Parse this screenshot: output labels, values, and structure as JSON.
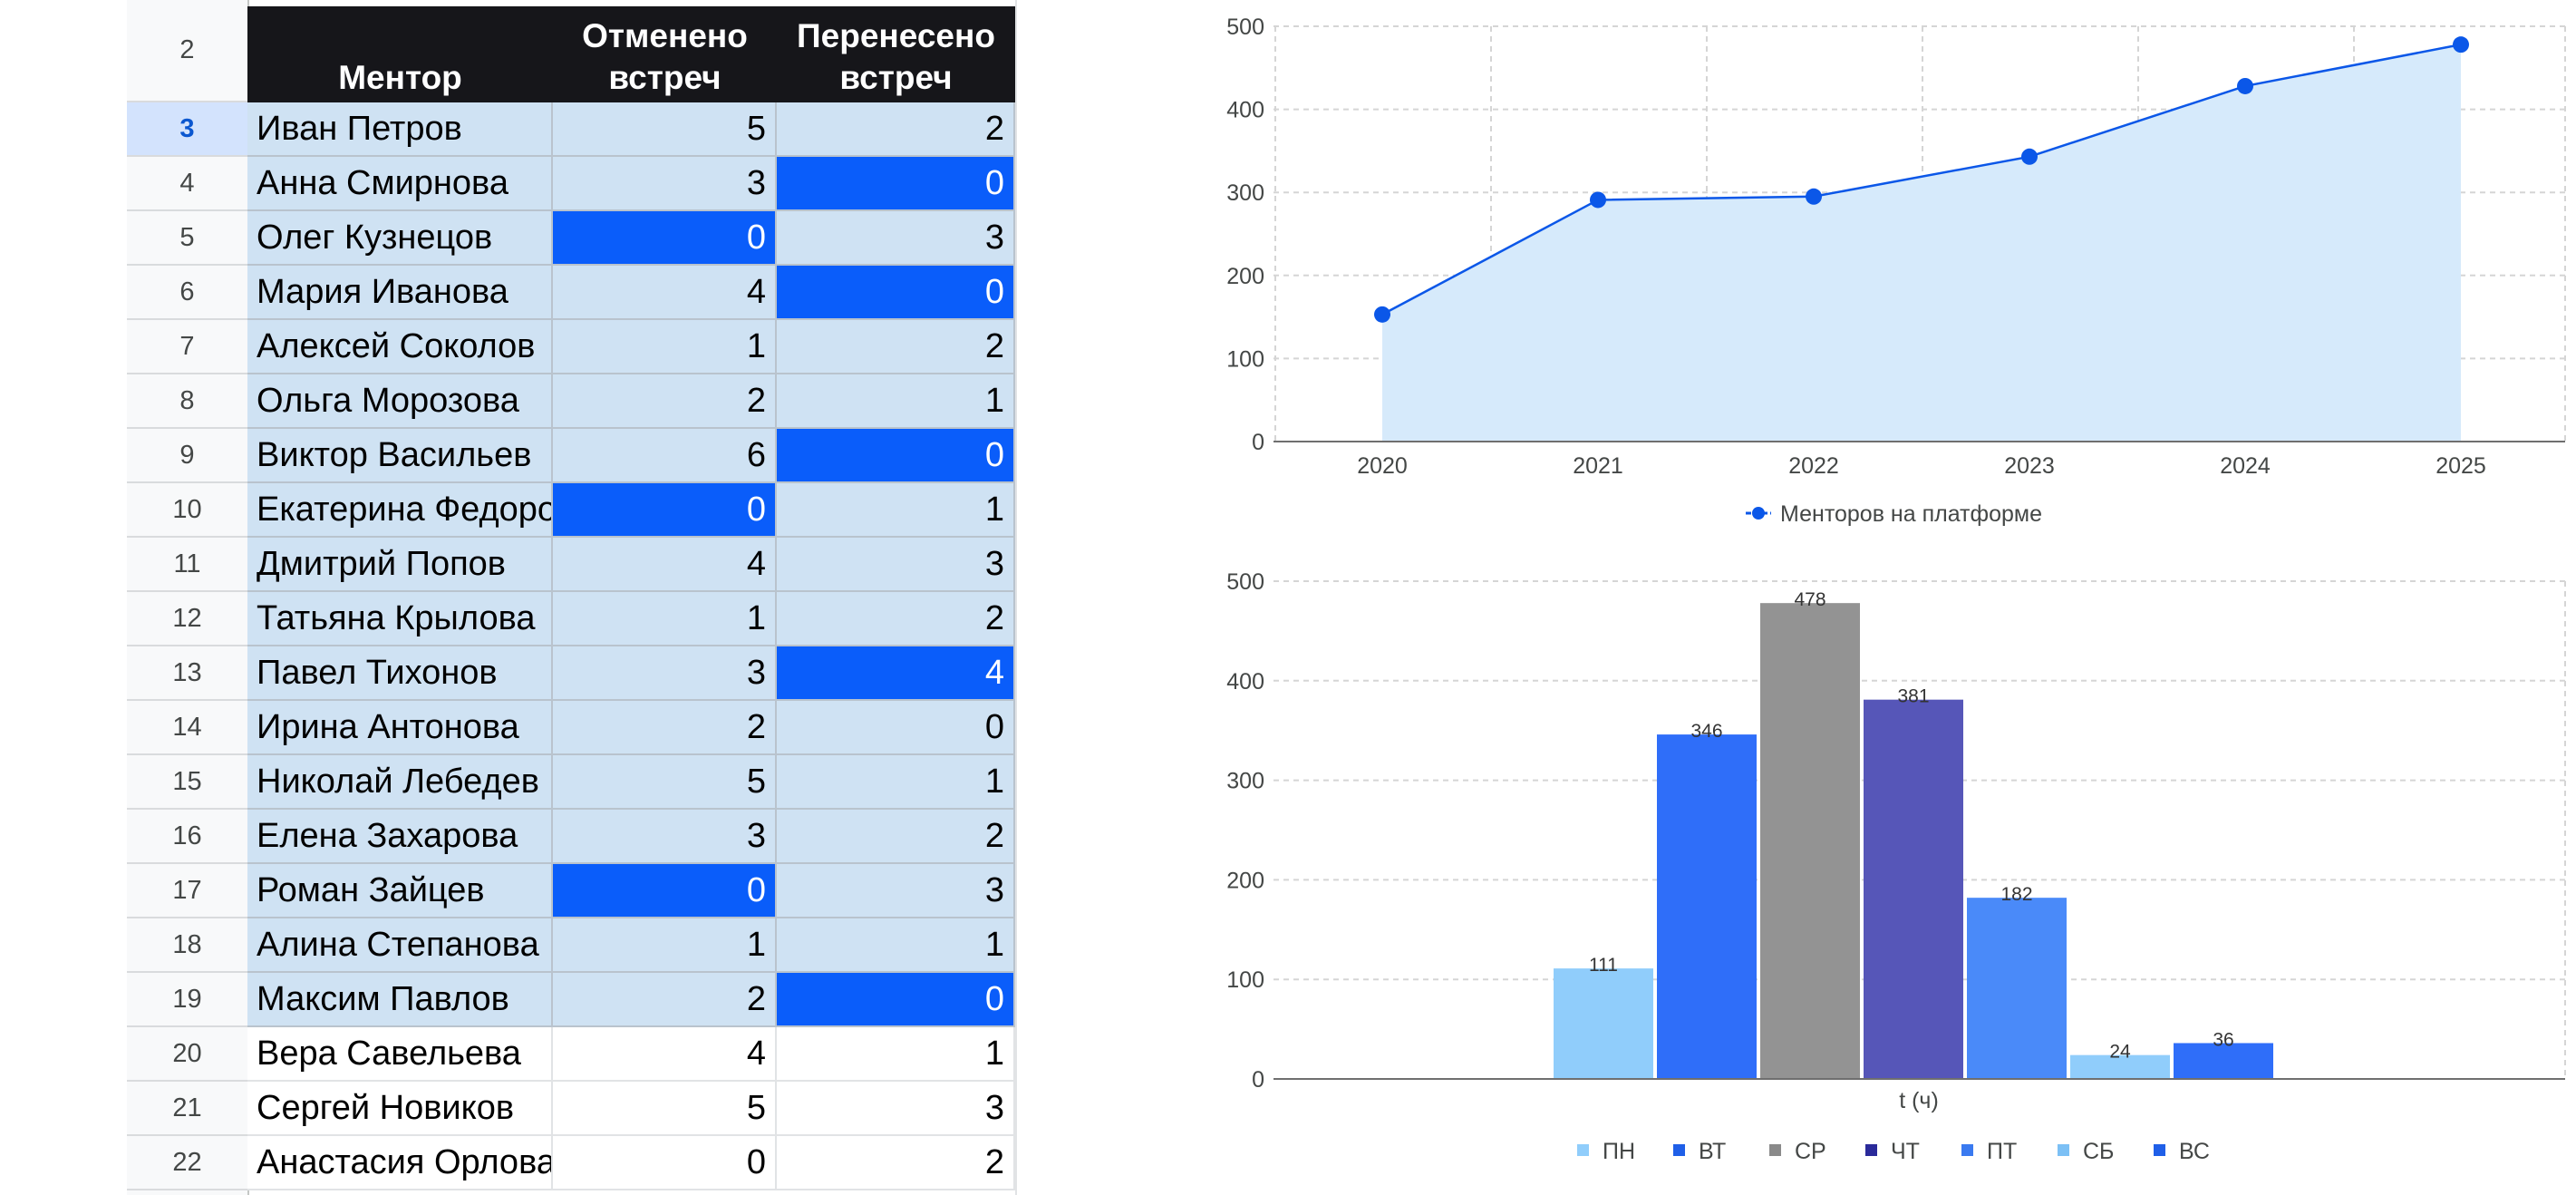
{
  "sheet": {
    "header_row_number": "2",
    "headers": {
      "mentor": "Ментор",
      "cancelled": "Отменено\nвстреч",
      "moved": "Перенесено\nвстреч"
    },
    "rows": [
      {
        "num": "3",
        "name": "Иван Петров",
        "cancelled": "5",
        "moved": "2",
        "cancelled_hi": false,
        "moved_hi": false,
        "band": true,
        "active": true
      },
      {
        "num": "4",
        "name": "Анна Смирнова",
        "cancelled": "3",
        "moved": "0",
        "cancelled_hi": false,
        "moved_hi": true,
        "band": true,
        "active": false
      },
      {
        "num": "5",
        "name": "Олег Кузнецов",
        "cancelled": "0",
        "moved": "3",
        "cancelled_hi": true,
        "moved_hi": false,
        "band": true,
        "active": false
      },
      {
        "num": "6",
        "name": "Мария Иванова",
        "cancelled": "4",
        "moved": "0",
        "cancelled_hi": false,
        "moved_hi": true,
        "band": true,
        "active": false
      },
      {
        "num": "7",
        "name": "Алексей Соколов",
        "cancelled": "1",
        "moved": "2",
        "cancelled_hi": false,
        "moved_hi": false,
        "band": true,
        "active": false
      },
      {
        "num": "8",
        "name": "Ольга Морозова",
        "cancelled": "2",
        "moved": "1",
        "cancelled_hi": false,
        "moved_hi": false,
        "band": true,
        "active": false
      },
      {
        "num": "9",
        "name": "Виктор Васильев",
        "cancelled": "6",
        "moved": "0",
        "cancelled_hi": false,
        "moved_hi": true,
        "band": true,
        "active": false
      },
      {
        "num": "10",
        "name": "Екатерина Федоро",
        "cancelled": "0",
        "moved": "1",
        "cancelled_hi": true,
        "moved_hi": false,
        "band": true,
        "active": false
      },
      {
        "num": "11",
        "name": "Дмитрий Попов",
        "cancelled": "4",
        "moved": "3",
        "cancelled_hi": false,
        "moved_hi": false,
        "band": true,
        "active": false
      },
      {
        "num": "12",
        "name": "Татьяна Крылова",
        "cancelled": "1",
        "moved": "2",
        "cancelled_hi": false,
        "moved_hi": false,
        "band": true,
        "active": false
      },
      {
        "num": "13",
        "name": "Павел Тихонов",
        "cancelled": "3",
        "moved": "4",
        "cancelled_hi": false,
        "moved_hi": true,
        "band": true,
        "active": false
      },
      {
        "num": "14",
        "name": "Ирина Антонова",
        "cancelled": "2",
        "moved": "0",
        "cancelled_hi": false,
        "moved_hi": false,
        "band": true,
        "active": false
      },
      {
        "num": "15",
        "name": "Николай Лебедев",
        "cancelled": "5",
        "moved": "1",
        "cancelled_hi": false,
        "moved_hi": false,
        "band": true,
        "active": false
      },
      {
        "num": "16",
        "name": "Елена Захарова",
        "cancelled": "3",
        "moved": "2",
        "cancelled_hi": false,
        "moved_hi": false,
        "band": true,
        "active": false
      },
      {
        "num": "17",
        "name": "Роман Зайцев",
        "cancelled": "0",
        "moved": "3",
        "cancelled_hi": true,
        "moved_hi": false,
        "band": true,
        "active": false
      },
      {
        "num": "18",
        "name": "Алина Степанова",
        "cancelled": "1",
        "moved": "1",
        "cancelled_hi": false,
        "moved_hi": false,
        "band": true,
        "active": false
      },
      {
        "num": "19",
        "name": "Максим Павлов",
        "cancelled": "2",
        "moved": "0",
        "cancelled_hi": false,
        "moved_hi": true,
        "band": true,
        "active": false
      },
      {
        "num": "20",
        "name": "Вера Савельева",
        "cancelled": "4",
        "moved": "1",
        "cancelled_hi": false,
        "moved_hi": false,
        "band": false,
        "active": false
      },
      {
        "num": "21",
        "name": "Сергей Новиков",
        "cancelled": "5",
        "moved": "3",
        "cancelled_hi": false,
        "moved_hi": false,
        "band": false,
        "active": false
      },
      {
        "num": "22",
        "name": "Анастасия Орлова",
        "cancelled": "0",
        "moved": "2",
        "cancelled_hi": false,
        "moved_hi": false,
        "band": false,
        "active": false
      }
    ]
  },
  "colors": {
    "highlight": "#0a5dfa",
    "band": "#cfe2f3",
    "line": "#0b57e8",
    "area": "#d6eafb"
  },
  "chart_data": [
    {
      "type": "area",
      "x": [
        "2020",
        "2021",
        "2022",
        "2023",
        "2024",
        "2025"
      ],
      "series": [
        {
          "name": "Менторов на платформе",
          "values": [
            153,
            291,
            295,
            343,
            428,
            478
          ]
        }
      ],
      "ylim": [
        0,
        500
      ],
      "yticks": [
        "0",
        "100",
        "200",
        "300",
        "400",
        "500"
      ],
      "grid": true,
      "legend": "bottom",
      "markers": true
    },
    {
      "type": "bar",
      "xlabel": "t (ч)",
      "ylim": [
        0,
        500
      ],
      "yticks": [
        "0",
        "100",
        "200",
        "300",
        "400",
        "500"
      ],
      "grid": true,
      "legend": "bottom",
      "series": [
        {
          "name": "ПН",
          "value": 111,
          "color": "#90cdfb"
        },
        {
          "name": "ВТ",
          "value": 346,
          "color": "#2f6ef9"
        },
        {
          "name": "СР",
          "value": 478,
          "color": "#939393"
        },
        {
          "name": "ЧТ",
          "value": 381,
          "color": "#5656b8"
        },
        {
          "name": "ПТ",
          "value": 182,
          "color": "#4a8af9"
        },
        {
          "name": "СБ",
          "value": 24,
          "color": "#90cdfb"
        },
        {
          "name": "ВС",
          "value": 36,
          "color": "#2f6ef9"
        }
      ],
      "legend_colors": [
        "#90cdfb",
        "#1f5fe8",
        "#8a8a8a",
        "#2a2a9a",
        "#3a7af0",
        "#7cc0f5",
        "#1f5fe8"
      ]
    }
  ]
}
